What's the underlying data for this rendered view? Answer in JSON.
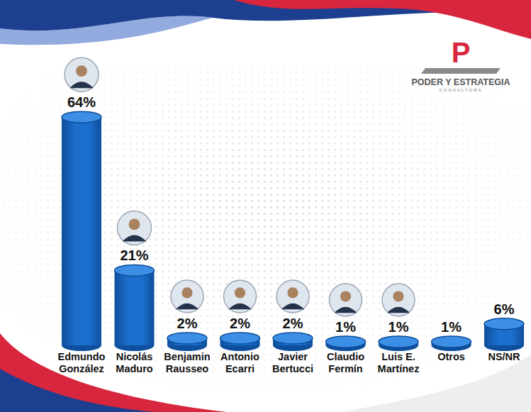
{
  "chart_data": {
    "type": "bar",
    "categories": [
      "Edmundo González",
      "Nicolás Maduro",
      "Benjamin Rausseo",
      "Antonio Ecarri",
      "Javier Bertucci",
      "Claudio Fermín",
      "Luis E. Martínez",
      "Otros",
      "NS/NR"
    ],
    "values": [
      64,
      21,
      2,
      2,
      2,
      1,
      1,
      1,
      6
    ],
    "value_labels": [
      "64%",
      "21%",
      "2%",
      "2%",
      "2%",
      "1%",
      "1%",
      "1%",
      "6%"
    ],
    "data_labels": true,
    "color": "#1c6fcc",
    "ylim": [
      0,
      70
    ],
    "grid": false,
    "tick_labels": false
  },
  "brand": {
    "letter": "P",
    "name": "PODER Y ESTRATEGIA",
    "tagline": "CONSULTORA"
  }
}
